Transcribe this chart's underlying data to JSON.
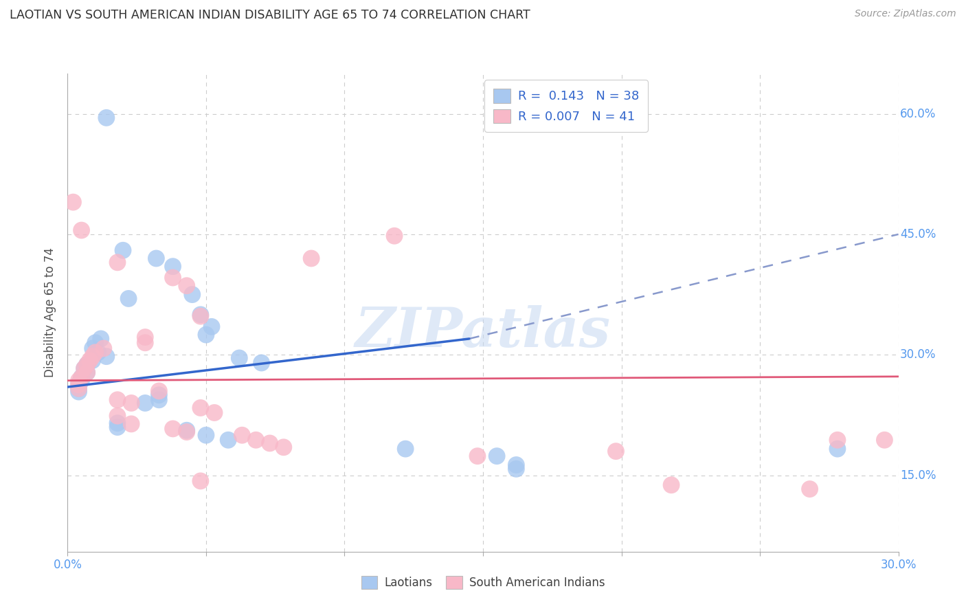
{
  "title": "LAOTIAN VS SOUTH AMERICAN INDIAN DISABILITY AGE 65 TO 74 CORRELATION CHART",
  "source": "Source: ZipAtlas.com",
  "ylabel": "Disability Age 65 to 74",
  "xlim": [
    0.0,
    0.3
  ],
  "ylim": [
    0.055,
    0.65
  ],
  "xtick_positions": [
    0.0,
    0.05,
    0.1,
    0.15,
    0.2,
    0.25,
    0.3
  ],
  "xtick_labels": [
    "0.0%",
    "",
    "",
    "",
    "",
    "",
    "30.0%"
  ],
  "ytick_positions": [
    0.15,
    0.3,
    0.45,
    0.6
  ],
  "ytick_labels": [
    "15.0%",
    "30.0%",
    "45.0%",
    "60.0%"
  ],
  "legend_blue_R": "0.143",
  "legend_blue_N": "38",
  "legend_pink_R": "0.007",
  "legend_pink_N": "41",
  "legend_blue_label": "Laotians",
  "legend_pink_label": "South American Indians",
  "watermark": "ZIPatlas",
  "blue_color": "#A8C8F0",
  "pink_color": "#F8B8C8",
  "blue_line_color": "#3366CC",
  "pink_line_color": "#E05878",
  "blue_dash_color": "#8899CC",
  "title_color": "#303030",
  "axis_label_color": "#505050",
  "tick_color": "#5599EE",
  "grid_color": "#CCCCCC",
  "blue_points": [
    [
      0.014,
      0.595
    ],
    [
      0.02,
      0.43
    ],
    [
      0.032,
      0.42
    ],
    [
      0.038,
      0.41
    ],
    [
      0.045,
      0.375
    ],
    [
      0.022,
      0.37
    ],
    [
      0.048,
      0.35
    ],
    [
      0.052,
      0.335
    ],
    [
      0.05,
      0.325
    ],
    [
      0.012,
      0.32
    ],
    [
      0.01,
      0.315
    ],
    [
      0.009,
      0.308
    ],
    [
      0.011,
      0.303
    ],
    [
      0.014,
      0.298
    ],
    [
      0.009,
      0.293
    ],
    [
      0.007,
      0.288
    ],
    [
      0.006,
      0.283
    ],
    [
      0.007,
      0.278
    ],
    [
      0.005,
      0.272
    ],
    [
      0.005,
      0.268
    ],
    [
      0.062,
      0.296
    ],
    [
      0.07,
      0.29
    ],
    [
      0.004,
      0.264
    ],
    [
      0.004,
      0.258
    ],
    [
      0.004,
      0.254
    ],
    [
      0.033,
      0.25
    ],
    [
      0.033,
      0.244
    ],
    [
      0.028,
      0.24
    ],
    [
      0.018,
      0.215
    ],
    [
      0.018,
      0.21
    ],
    [
      0.043,
      0.206
    ],
    [
      0.05,
      0.2
    ],
    [
      0.058,
      0.194
    ],
    [
      0.122,
      0.183
    ],
    [
      0.155,
      0.174
    ],
    [
      0.162,
      0.163
    ],
    [
      0.162,
      0.158
    ],
    [
      0.278,
      0.183
    ]
  ],
  "pink_points": [
    [
      0.002,
      0.49
    ],
    [
      0.005,
      0.455
    ],
    [
      0.018,
      0.415
    ],
    [
      0.038,
      0.396
    ],
    [
      0.043,
      0.386
    ],
    [
      0.118,
      0.448
    ],
    [
      0.088,
      0.42
    ],
    [
      0.048,
      0.348
    ],
    [
      0.028,
      0.322
    ],
    [
      0.028,
      0.315
    ],
    [
      0.013,
      0.308
    ],
    [
      0.01,
      0.303
    ],
    [
      0.009,
      0.298
    ],
    [
      0.008,
      0.293
    ],
    [
      0.007,
      0.288
    ],
    [
      0.006,
      0.283
    ],
    [
      0.007,
      0.278
    ],
    [
      0.005,
      0.272
    ],
    [
      0.004,
      0.268
    ],
    [
      0.004,
      0.263
    ],
    [
      0.004,
      0.258
    ],
    [
      0.033,
      0.255
    ],
    [
      0.018,
      0.244
    ],
    [
      0.023,
      0.24
    ],
    [
      0.048,
      0.234
    ],
    [
      0.053,
      0.228
    ],
    [
      0.018,
      0.224
    ],
    [
      0.023,
      0.214
    ],
    [
      0.038,
      0.208
    ],
    [
      0.043,
      0.204
    ],
    [
      0.063,
      0.2
    ],
    [
      0.068,
      0.194
    ],
    [
      0.073,
      0.19
    ],
    [
      0.078,
      0.185
    ],
    [
      0.148,
      0.174
    ],
    [
      0.198,
      0.18
    ],
    [
      0.218,
      0.138
    ],
    [
      0.268,
      0.133
    ],
    [
      0.278,
      0.194
    ],
    [
      0.048,
      0.143
    ],
    [
      0.295,
      0.194
    ]
  ],
  "blue_regression_solid": [
    0.0,
    0.26,
    0.145,
    0.32
  ],
  "blue_regression_dash": [
    0.145,
    0.32,
    0.3,
    0.45
  ],
  "pink_regression": [
    0.0,
    0.268,
    0.3,
    0.273
  ]
}
